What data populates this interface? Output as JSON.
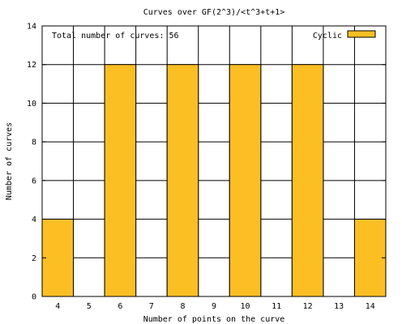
{
  "chart_data": {
    "type": "bar",
    "title": "Curves over GF(2^3)/<t^3+t+1>",
    "xlabel": "Number of points on the curve",
    "ylabel": "Number of curves",
    "annotation": "Total number of curves: 56",
    "categories": [
      "4",
      "5",
      "6",
      "7",
      "8",
      "9",
      "10",
      "11",
      "12",
      "13",
      "14"
    ],
    "series": [
      {
        "name": "Cyclic",
        "values": [
          4,
          0,
          12,
          0,
          12,
          0,
          12,
          0,
          12,
          0,
          4
        ],
        "color": "#fbbf24"
      }
    ],
    "ylim": [
      0,
      14
    ],
    "yticks": [
      "0",
      "2",
      "4",
      "6",
      "8",
      "10",
      "12",
      "14"
    ],
    "grid": true,
    "legend_position": "top-right"
  }
}
